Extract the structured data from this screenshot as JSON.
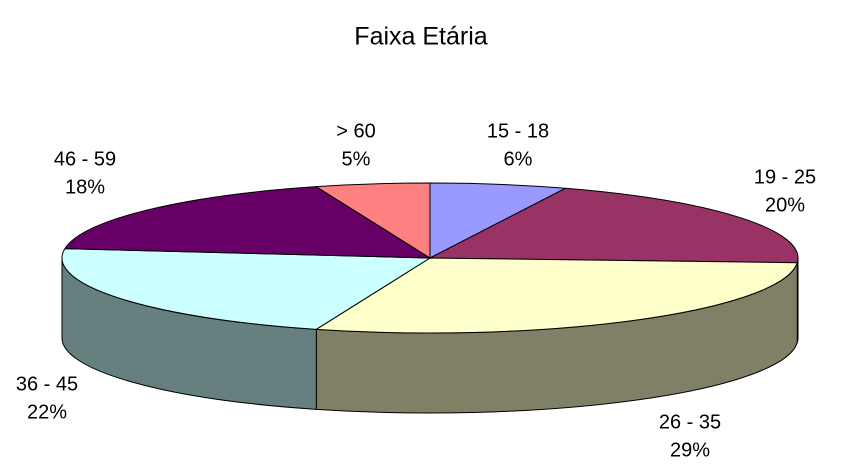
{
  "chart_data": {
    "type": "pie3d",
    "title": "Faixa Etária",
    "categories": [
      "15 - 18",
      "19 - 25",
      "26 - 35",
      "36 - 45",
      "46 - 59",
      "> 60"
    ],
    "values": [
      6,
      20,
      29,
      22,
      18,
      5
    ],
    "value_labels": [
      "6%",
      "20%",
      "29%",
      "22%",
      "18%",
      "5%"
    ],
    "colors": [
      "#9999ff",
      "#993366",
      "#ffffcc",
      "#ccffff",
      "#660066",
      "#ff8080"
    ]
  }
}
